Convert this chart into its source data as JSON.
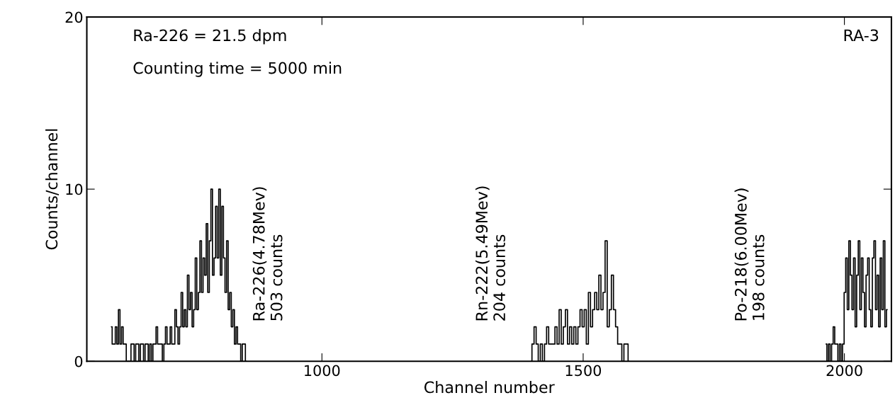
{
  "chart_data": {
    "type": "step",
    "xlabel": "Channel number",
    "ylabel": "Counts/channel",
    "xlim": [
      550,
      2090
    ],
    "xticks": [
      1000,
      1500,
      2000
    ],
    "ylim": [
      0,
      20
    ],
    "yticks": [
      0,
      10,
      20
    ],
    "grid": false,
    "line_style": "solid",
    "series": [
      {
        "color": "#000000",
        "x": [
          597,
          600,
          603,
          606,
          609,
          612,
          615,
          618,
          621,
          624,
          627,
          630,
          633,
          636,
          639,
          642,
          645,
          648,
          651,
          654,
          657,
          660,
          663,
          666,
          669,
          672,
          675,
          678,
          681,
          684,
          687,
          690,
          693,
          696,
          699,
          702,
          705,
          708,
          711,
          714,
          717,
          720,
          723,
          726,
          729,
          732,
          735,
          738,
          741,
          744,
          747,
          750,
          753,
          756,
          759,
          762,
          765,
          768,
          771,
          774,
          777,
          780,
          783,
          786,
          789,
          792,
          795,
          798,
          801,
          804,
          807,
          810,
          813,
          816,
          819,
          822,
          825,
          828,
          831,
          834,
          837,
          840,
          843,
          846,
          849,
          852,
          855
        ],
        "values": [
          2,
          1,
          1,
          2,
          1,
          3,
          1,
          2,
          1,
          1,
          0,
          0,
          0,
          1,
          1,
          0,
          1,
          1,
          0,
          1,
          1,
          0,
          1,
          1,
          0,
          1,
          0,
          1,
          1,
          2,
          1,
          1,
          1,
          0,
          1,
          2,
          1,
          1,
          2,
          1,
          1,
          3,
          2,
          1,
          2,
          4,
          2,
          3,
          2,
          5,
          3,
          4,
          2,
          3,
          6,
          3,
          4,
          7,
          4,
          6,
          5,
          8,
          4,
          7,
          10,
          5,
          6,
          9,
          6,
          10,
          5,
          9,
          6,
          4,
          7,
          3,
          4,
          2,
          3,
          1,
          2,
          1,
          1,
          0,
          1,
          1,
          0
        ]
      },
      {
        "color": "#000000",
        "x": [
          1400,
          1404,
          1408,
          1412,
          1416,
          1420,
          1424,
          1428,
          1432,
          1436,
          1440,
          1444,
          1448,
          1452,
          1456,
          1460,
          1464,
          1468,
          1472,
          1476,
          1480,
          1484,
          1488,
          1492,
          1496,
          1500,
          1504,
          1508,
          1512,
          1516,
          1520,
          1524,
          1528,
          1532,
          1536,
          1540,
          1544,
          1548,
          1552,
          1556,
          1560,
          1564,
          1568,
          1572,
          1576,
          1580,
          1584,
          1588
        ],
        "values": [
          0,
          1,
          2,
          1,
          0,
          1,
          0,
          1,
          2,
          1,
          1,
          1,
          2,
          1,
          3,
          1,
          2,
          3,
          1,
          2,
          1,
          2,
          1,
          2,
          3,
          2,
          3,
          1,
          4,
          2,
          3,
          4,
          3,
          5,
          3,
          4,
          7,
          2,
          3,
          5,
          3,
          2,
          1,
          1,
          0,
          1,
          1,
          0
        ]
      },
      {
        "color": "#000000",
        "x": [
          1965,
          1968,
          1971,
          1974,
          1977,
          1980,
          1983,
          1986,
          1989,
          1992,
          1995,
          1998,
          2001,
          2004,
          2007,
          2010,
          2013,
          2016,
          2019,
          2022,
          2025,
          2028,
          2031,
          2034,
          2037,
          2040,
          2043,
          2046,
          2049,
          2052,
          2055,
          2058,
          2061,
          2064,
          2067,
          2070,
          2073,
          2076,
          2079,
          2082
        ],
        "values": [
          1,
          0,
          1,
          0,
          1,
          2,
          1,
          1,
          0,
          1,
          0,
          1,
          4,
          6,
          3,
          7,
          5,
          3,
          6,
          2,
          5,
          7,
          3,
          6,
          4,
          2,
          5,
          6,
          3,
          2,
          6,
          7,
          3,
          5,
          2,
          6,
          3,
          7,
          2,
          3
        ]
      }
    ],
    "annotations": [
      "Ra-226 = 21.5 dpm",
      "Counting time = 5000 min",
      "RA-3",
      "Ra-226(4.78Mev)\n503 counts",
      "Rn-222(5.49Mev)\n204 counts",
      "Po-218(6.00Mev)\n198 counts"
    ]
  }
}
